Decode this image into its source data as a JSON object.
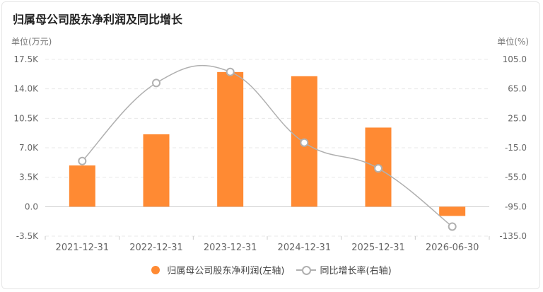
{
  "header": {
    "title": "归属母公司股东净利润及同比增长",
    "unit_left": "单位(万元)",
    "unit_right": "单位(%)"
  },
  "colors": {
    "bar": "#ff8a33",
    "line": "#b0b0b0",
    "grid": "#e8e8e8",
    "axis_text": "#666666"
  },
  "chart_data": {
    "type": "bar",
    "categories": [
      "2021-12-31",
      "2022-12-31",
      "2023-12-31",
      "2024-12-31",
      "2025-12-31",
      "2026-06-30"
    ],
    "series": [
      {
        "name": "归属母公司股东净利润(左轴)",
        "type": "bar",
        "axis": "left",
        "values": [
          4900,
          8600,
          16000,
          15500,
          9400,
          -1100
        ]
      },
      {
        "name": "同比增长率(右轴)",
        "type": "line",
        "axis": "right",
        "values": [
          -33,
          73,
          88,
          -8,
          -43,
          -122
        ]
      }
    ],
    "y_left": {
      "ylim": [
        -3500,
        17500
      ],
      "ticks": [
        "17.5K",
        "14.0K",
        "10.5K",
        "7.0K",
        "3.5K",
        "0.0",
        "-3.5K"
      ]
    },
    "y_right": {
      "ylim": [
        -135,
        105
      ],
      "ticks": [
        "105.0",
        "65.0",
        "25.0",
        "-15.0",
        "-55.0",
        "-95.0",
        "-135.0"
      ]
    },
    "grid": true,
    "legend": "bottom"
  }
}
